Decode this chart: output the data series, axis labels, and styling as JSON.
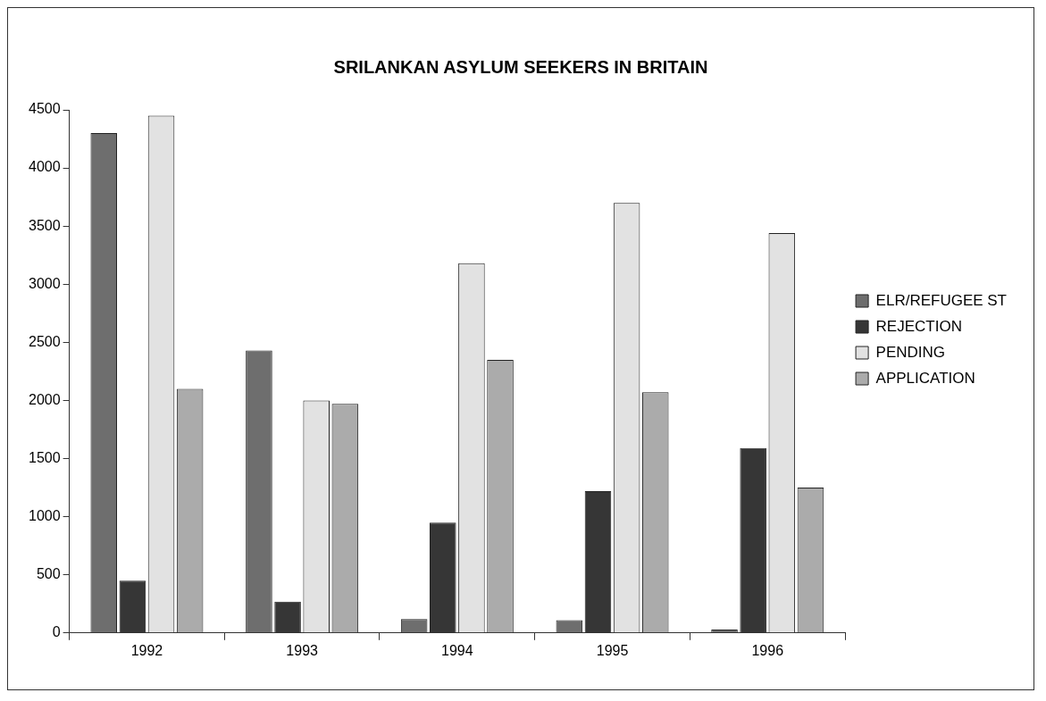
{
  "chart_data": {
    "type": "bar",
    "title": "SRILANKAN ASYLUM SEEKERS IN BRITAIN",
    "categories": [
      "1992",
      "1993",
      "1994",
      "1995",
      "1996"
    ],
    "series": [
      {
        "name": "ELR/REFUGEE ST",
        "color": "#6e6e6e",
        "values": [
          4300,
          2430,
          120,
          110,
          30
        ]
      },
      {
        "name": "REJECTION",
        "color": "#363636",
        "values": [
          450,
          270,
          950,
          1220,
          1590
        ]
      },
      {
        "name": "PENDING",
        "color": "#e2e2e2",
        "values": [
          4450,
          2000,
          3180,
          3700,
          3440
        ]
      },
      {
        "name": "APPLICATION",
        "color": "#ababab",
        "values": [
          2100,
          1970,
          2350,
          2070,
          1250
        ]
      }
    ],
    "ylim": [
      0,
      4500
    ],
    "yticks": [
      0,
      500,
      1000,
      1500,
      2000,
      2500,
      3000,
      3500,
      4000,
      4500
    ],
    "legend": "right"
  }
}
